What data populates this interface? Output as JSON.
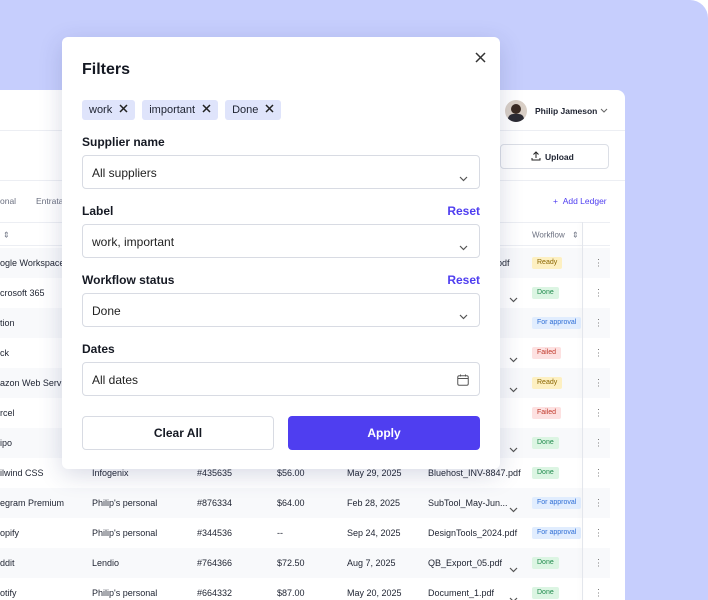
{
  "background": {
    "user_name": "Philip Jameson",
    "upload": "Upload",
    "tabs": [
      "onal",
      "Entrata"
    ],
    "add_ledger": "Add Ledger",
    "column_header": "Workflow",
    "rows": [
      {
        "entity": "ogle Workspace",
        "file": "pdf",
        "status": "Ready"
      },
      {
        "entity": "crosoft 365",
        "status": "Done",
        "menu": true
      },
      {
        "entity": "tion",
        "status": "For approval"
      },
      {
        "entity": "ck",
        "status": "Failed",
        "menu": true
      },
      {
        "entity": "azon Web Servic",
        "status": "Ready",
        "menu": true
      },
      {
        "entity": "rcel",
        "status": "Failed"
      },
      {
        "entity": "ipo",
        "status": "Done",
        "menu": true
      },
      {
        "entity": "ilwind CSS",
        "supplier": "Infogenix",
        "id": "#435635",
        "amount": "$56.00",
        "date": "May 29, 2025",
        "file": "Bluehost_INV-8847.pdf",
        "status": "Done"
      },
      {
        "entity": "egram Premium",
        "supplier": "Philip's personal",
        "id": "#876334",
        "amount": "$64.00",
        "date": "Feb 28, 2025",
        "file": "SubTool_May-Jun...",
        "status": "For approval",
        "menu": true
      },
      {
        "entity": "opify",
        "supplier": "Philip's personal",
        "id": "#344536",
        "amount": "--",
        "date": "Sep 24, 2025",
        "file": "DesignTools_2024.pdf",
        "status": "For approval"
      },
      {
        "entity": "ddit",
        "supplier": "Lendio",
        "id": "#764366",
        "amount": "$72.50",
        "date": "Aug 7, 2025",
        "file": "QB_Export_05.pdf",
        "status": "Done",
        "menu": true
      },
      {
        "entity": "otify",
        "supplier": "Philip's personal",
        "id": "#664332",
        "amount": "$87.00",
        "date": "May 20, 2025",
        "file": "Document_1.pdf",
        "status": "Done",
        "menu": true
      }
    ]
  },
  "modal": {
    "title": "Filters",
    "chips": [
      "work",
      "important",
      "Done"
    ],
    "fields": [
      {
        "label": "Supplier name",
        "value": "All suppliers",
        "kind": "select"
      },
      {
        "label": "Label",
        "reset": "Reset",
        "value": "work, important",
        "kind": "select"
      },
      {
        "label": "Workflow status",
        "reset": "Reset",
        "value": "Done",
        "kind": "select"
      },
      {
        "label": "Dates",
        "value": "All dates",
        "kind": "date"
      }
    ],
    "clear": "Clear All",
    "apply": "Apply"
  }
}
